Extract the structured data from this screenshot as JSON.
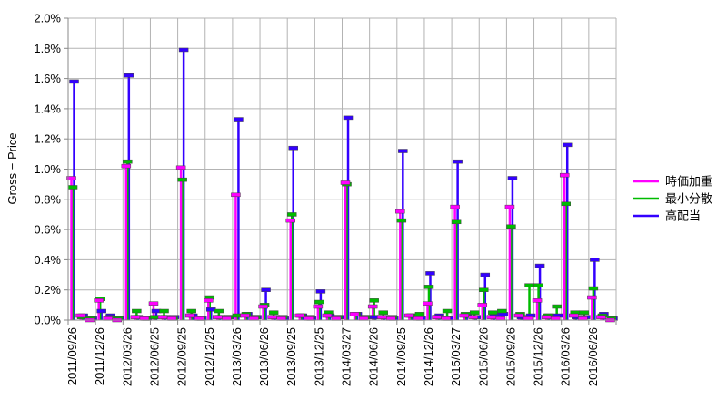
{
  "chart_data": {
    "type": "line",
    "subtype": "high-low-bars",
    "title": "",
    "xlabel": "",
    "ylabel": "Gross − Price",
    "ylim": [
      0,
      2.0
    ],
    "y_unit": "%",
    "grid": true,
    "legend_position": "right",
    "y_ticks": [
      "0.0%",
      "0.2%",
      "0.4%",
      "0.6%",
      "0.8%",
      "1.0%",
      "1.2%",
      "1.4%",
      "1.6%",
      "1.8%",
      "2.0%"
    ],
    "x_tick_labels": [
      "2011/09/26",
      "2011/12/26",
      "2012/03/26",
      "2012/06/25",
      "2012/09/25",
      "2012/12/25",
      "2013/03/26",
      "2013/06/26",
      "2013/09/25",
      "2013/12/25",
      "2014/03/27",
      "2014/06/26",
      "2014/09/25",
      "2014/12/26",
      "2015/03/27",
      "2015/06/26",
      "2015/09/26",
      "2015/12/26",
      "2016/03/26",
      "2016/06/26"
    ],
    "points_per_period": 3,
    "series": [
      {
        "name": "時価加重",
        "color": "#ff00ff",
        "values": [
          [
            0.94,
            0.03,
            0.0
          ],
          [
            0.13,
            0.01,
            0.0
          ],
          [
            1.02,
            0.02,
            0.01
          ],
          [
            0.11,
            0.02,
            0.01
          ],
          [
            1.01,
            0.03,
            0.01
          ],
          [
            0.13,
            0.02,
            0.01
          ],
          [
            0.83,
            0.03,
            0.01
          ],
          [
            0.09,
            0.02,
            0.01
          ],
          [
            0.66,
            0.03,
            0.01
          ],
          [
            0.09,
            0.03,
            0.01
          ],
          [
            0.91,
            0.04,
            0.01
          ],
          [
            0.09,
            0.02,
            0.01
          ],
          [
            0.72,
            0.03,
            0.01
          ],
          [
            0.11,
            0.02,
            0.01
          ],
          [
            0.75,
            0.03,
            0.02
          ],
          [
            0.1,
            0.02,
            0.01
          ],
          [
            0.75,
            0.03,
            0.01
          ],
          [
            0.13,
            0.02,
            0.01
          ],
          [
            0.96,
            0.03,
            0.01
          ],
          [
            0.15,
            0.02,
            0.0
          ]
        ]
      },
      {
        "name": "最小分散",
        "color": "#00bb00",
        "values": [
          [
            0.88,
            0.02,
            0.01
          ],
          [
            0.14,
            0.02,
            0.01
          ],
          [
            1.05,
            0.06,
            0.01
          ],
          [
            0.02,
            0.06,
            0.01
          ],
          [
            0.93,
            0.06,
            0.01
          ],
          [
            0.15,
            0.06,
            0.02
          ],
          [
            0.03,
            0.04,
            0.02
          ],
          [
            0.1,
            0.05,
            0.02
          ],
          [
            0.7,
            0.03,
            0.02
          ],
          [
            0.12,
            0.05,
            0.02
          ],
          [
            0.9,
            0.04,
            0.02
          ],
          [
            0.13,
            0.05,
            0.02
          ],
          [
            0.66,
            0.03,
            0.04
          ],
          [
            0.22,
            0.02,
            0.06
          ],
          [
            0.65,
            0.04,
            0.05
          ],
          [
            0.2,
            0.05,
            0.06
          ],
          [
            0.62,
            0.04,
            0.23
          ],
          [
            0.23,
            0.03,
            0.09
          ],
          [
            0.77,
            0.05,
            0.05
          ],
          [
            0.21,
            0.03,
            0.01
          ]
        ]
      },
      {
        "name": "高配当",
        "color": "#3300ff",
        "values": [
          [
            1.58,
            0.03,
            0.01
          ],
          [
            0.06,
            0.03,
            0.01
          ],
          [
            1.62,
            0.02,
            0.01
          ],
          [
            0.06,
            0.02,
            0.02
          ],
          [
            1.79,
            0.03,
            0.01
          ],
          [
            0.07,
            0.02,
            0.02
          ],
          [
            1.33,
            0.04,
            0.02
          ],
          [
            0.2,
            0.02,
            0.01
          ],
          [
            1.14,
            0.03,
            0.01
          ],
          [
            0.19,
            0.03,
            0.02
          ],
          [
            1.34,
            0.04,
            0.02
          ],
          [
            0.02,
            0.02,
            0.01
          ],
          [
            1.12,
            0.03,
            0.01
          ],
          [
            0.31,
            0.03,
            0.01
          ],
          [
            1.05,
            0.03,
            0.02
          ],
          [
            0.3,
            0.04,
            0.04
          ],
          [
            0.94,
            0.02,
            0.03
          ],
          [
            0.36,
            0.03,
            0.03
          ],
          [
            1.16,
            0.02,
            0.02
          ],
          [
            0.4,
            0.04,
            0.01
          ]
        ]
      }
    ]
  }
}
